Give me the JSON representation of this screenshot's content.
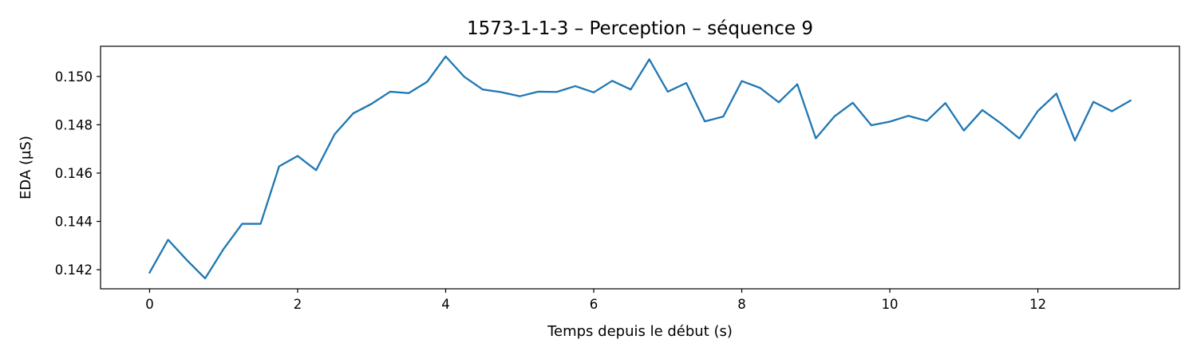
{
  "chart_data": {
    "type": "line",
    "title": "1573-1-1-3 – Perception – séquence 9",
    "xlabel": "Temps depuis le début (s)",
    "ylabel": "EDA (µS)",
    "xlim": [
      -0.6625,
      13.9125
    ],
    "ylim": [
      0.14121,
      0.15125
    ],
    "xticks": [
      0,
      2,
      4,
      6,
      8,
      10,
      12
    ],
    "yticks": [
      0.142,
      0.144,
      0.146,
      0.148,
      0.15
    ],
    "ytick_labels": [
      "0.142",
      "0.144",
      "0.146",
      "0.148",
      "0.150"
    ],
    "grid": false,
    "legend": "none",
    "series": [
      {
        "color": "#1f77b4",
        "x": [
          0,
          0.25,
          0.5,
          0.75,
          1.0,
          1.25,
          1.5,
          1.75,
          2.0,
          2.25,
          2.5,
          2.75,
          3.0,
          3.25,
          3.5,
          3.75,
          4.0,
          4.25,
          4.5,
          4.75,
          5.0,
          5.25,
          5.5,
          5.75,
          6.0,
          6.25,
          6.5,
          6.75,
          7.0,
          7.25,
          7.5,
          7.75,
          8.0,
          8.25,
          8.5,
          8.75,
          9.0,
          9.25,
          9.5,
          9.75,
          10.0,
          10.25,
          10.5,
          10.75,
          11.0,
          11.25,
          11.5,
          11.75,
          12.0,
          12.25,
          12.5,
          12.75,
          13.0,
          13.25
        ],
        "y": [
          0.14188,
          0.14324,
          0.14241,
          0.14164,
          0.14286,
          0.1439,
          0.1439,
          0.14628,
          0.14671,
          0.14612,
          0.14761,
          0.14847,
          0.14887,
          0.14937,
          0.14931,
          0.14978,
          0.15083,
          0.14999,
          0.14946,
          0.14935,
          0.14918,
          0.14937,
          0.14936,
          0.1496,
          0.14934,
          0.14982,
          0.14946,
          0.15071,
          0.14937,
          0.14973,
          0.14814,
          0.14834,
          0.14981,
          0.14952,
          0.14893,
          0.14968,
          0.14744,
          0.14834,
          0.14891,
          0.14798,
          0.14813,
          0.14837,
          0.14816,
          0.1489,
          0.14776,
          0.14861,
          0.14806,
          0.14743,
          0.14857,
          0.14929,
          0.14735,
          0.14895,
          0.14856,
          0.149
        ]
      }
    ]
  }
}
